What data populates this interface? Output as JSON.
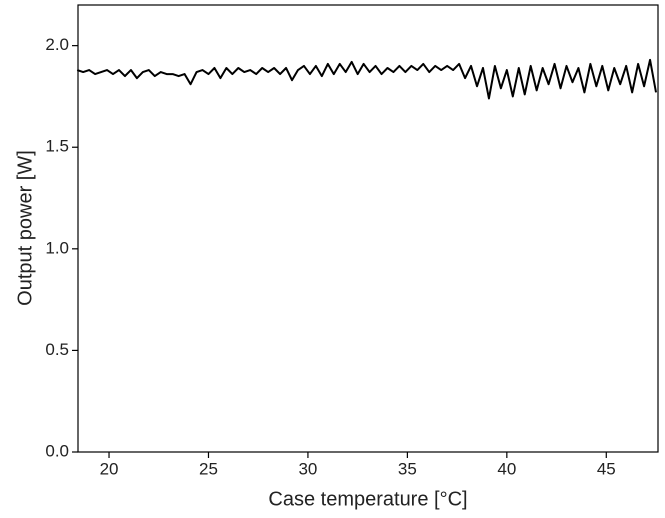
{
  "chart_data": {
    "type": "line",
    "x_label": "Case temperature [°C]",
    "y_label": "Output power [W]",
    "color": "#000000",
    "x": [
      18.4,
      18.7,
      19.0,
      19.3,
      19.6,
      19.9,
      20.2,
      20.5,
      20.8,
      21.1,
      21.4,
      21.7,
      22.0,
      22.3,
      22.6,
      22.9,
      23.2,
      23.5,
      23.8,
      24.1,
      24.4,
      24.7,
      25.0,
      25.3,
      25.6,
      25.9,
      26.2,
      26.5,
      26.8,
      27.1,
      27.4,
      27.7,
      28.0,
      28.3,
      28.6,
      28.9,
      29.2,
      29.5,
      29.8,
      30.1,
      30.4,
      30.7,
      31.0,
      31.3,
      31.6,
      31.9,
      32.2,
      32.5,
      32.8,
      33.1,
      33.4,
      33.7,
      34.0,
      34.3,
      34.6,
      34.9,
      35.2,
      35.5,
      35.8,
      36.1,
      36.4,
      36.7,
      37.0,
      37.3,
      37.6,
      37.9,
      38.2,
      38.5,
      38.8,
      39.1,
      39.4,
      39.7,
      40.0,
      40.3,
      40.6,
      40.9,
      41.2,
      41.5,
      41.8,
      42.1,
      42.4,
      42.7,
      43.0,
      43.3,
      43.6,
      43.9,
      44.2,
      44.5,
      44.8,
      45.1,
      45.4,
      45.7,
      46.0,
      46.3,
      46.6,
      46.9,
      47.2,
      47.5
    ],
    "values": [
      1.88,
      1.87,
      1.88,
      1.86,
      1.87,
      1.88,
      1.86,
      1.88,
      1.85,
      1.88,
      1.84,
      1.87,
      1.88,
      1.85,
      1.87,
      1.86,
      1.86,
      1.85,
      1.86,
      1.81,
      1.87,
      1.88,
      1.86,
      1.89,
      1.84,
      1.89,
      1.86,
      1.89,
      1.87,
      1.88,
      1.86,
      1.89,
      1.87,
      1.89,
      1.86,
      1.89,
      1.83,
      1.88,
      1.9,
      1.86,
      1.9,
      1.85,
      1.91,
      1.86,
      1.91,
      1.87,
      1.92,
      1.86,
      1.91,
      1.87,
      1.9,
      1.86,
      1.89,
      1.87,
      1.9,
      1.87,
      1.9,
      1.88,
      1.91,
      1.87,
      1.9,
      1.88,
      1.9,
      1.88,
      1.91,
      1.84,
      1.9,
      1.8,
      1.89,
      1.74,
      1.9,
      1.79,
      1.88,
      1.75,
      1.89,
      1.76,
      1.9,
      1.78,
      1.89,
      1.81,
      1.91,
      1.79,
      1.9,
      1.82,
      1.89,
      1.77,
      1.91,
      1.8,
      1.9,
      1.78,
      1.89,
      1.81,
      1.9,
      1.77,
      1.91,
      1.8,
      1.93,
      1.77
    ],
    "xlim": [
      18.44,
      47.6
    ],
    "ylim": [
      0,
      2.2
    ],
    "xticks": [
      20,
      25,
      30,
      35,
      40,
      45
    ],
    "yticks": [
      {
        "value": 0,
        "label": "0.0"
      },
      {
        "value": 0.5,
        "label": "0.5"
      },
      {
        "value": 1,
        "label": "1.0"
      },
      {
        "value": 1.5,
        "label": "1.5"
      },
      {
        "value": 2,
        "label": "2.0"
      }
    ]
  }
}
